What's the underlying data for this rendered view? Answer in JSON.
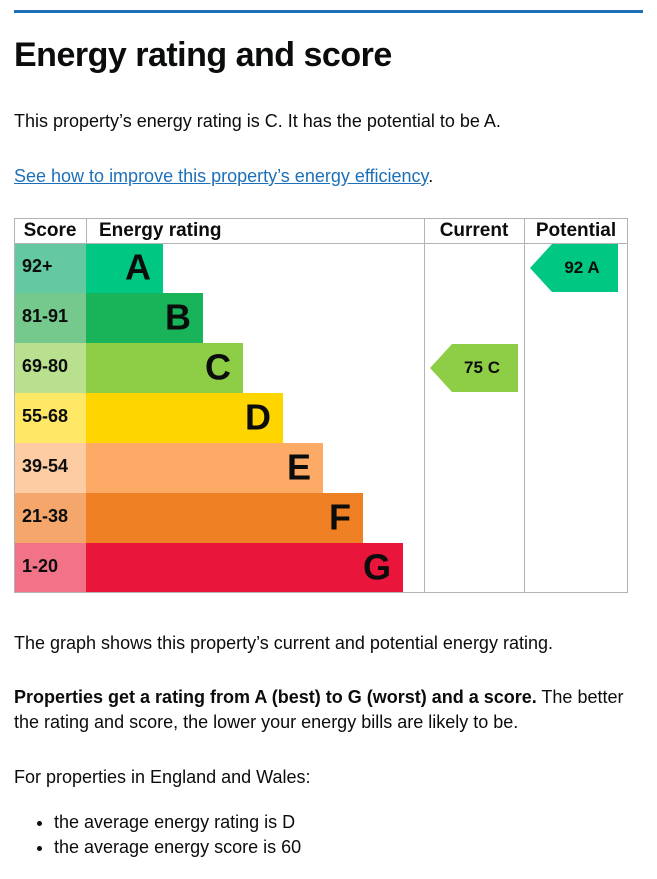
{
  "heading": "Energy rating and score",
  "intro": "This property’s energy rating is C. It has the potential to be A.",
  "link": {
    "text": "See how to improve this property’s energy efficiency",
    "after": "."
  },
  "rating_chart": {
    "headers": [
      "Score",
      "Energy rating",
      "Current",
      "Potential"
    ],
    "bands": [
      {
        "score": "92+",
        "letter": "A",
        "color": "#00c781",
        "score_color": "#64c8a0"
      },
      {
        "score": "81-91",
        "letter": "B",
        "color": "#19b459",
        "score_color": "#75c98c"
      },
      {
        "score": "69-80",
        "letter": "C",
        "color": "#8dce46",
        "score_color": "#b8e08f"
      },
      {
        "score": "55-68",
        "letter": "D",
        "color": "#ffd500",
        "score_color": "#ffe866"
      },
      {
        "score": "39-54",
        "letter": "E",
        "color": "#fcaa65",
        "score_color": "#fdcca2"
      },
      {
        "score": "21-38",
        "letter": "F",
        "color": "#ef8023",
        "score_color": "#f4a66b"
      },
      {
        "score": "1-20",
        "letter": "G",
        "color": "#e9153b",
        "score_color": "#f27387"
      }
    ],
    "current": {
      "score": 75,
      "letter": "C"
    },
    "potential": {
      "score": 92,
      "letter": "A"
    }
  },
  "graph_note": "The graph shows this property’s current and potential energy rating.",
  "explanation": {
    "bold": "Properties get a rating from A (best) to G (worst) and a score.",
    "text": " The better the rating and score, the lower your energy bills are likely to be."
  },
  "averages": {
    "intro": "For properties in England and Wales:",
    "items": [
      "the average energy rating is D",
      "the average energy score is 60"
    ]
  }
}
